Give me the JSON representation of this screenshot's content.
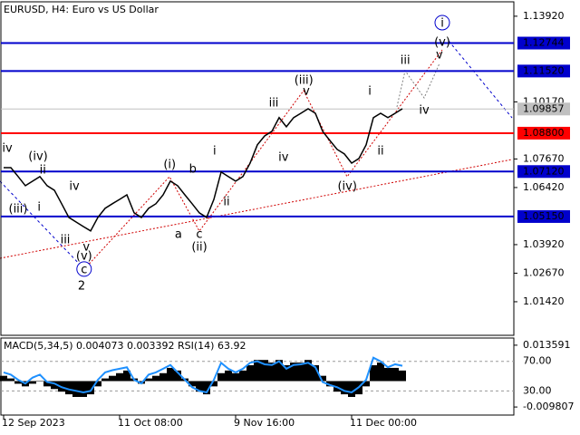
{
  "chart_data": [
    {
      "type": "line",
      "title": "EURUSD, H4:  Euro vs US Dollar",
      "categories": [
        "12 Sep 2023",
        null,
        null,
        null,
        null,
        null,
        null,
        null,
        null,
        null,
        null,
        null,
        null,
        null,
        null,
        null,
        "11 Oct 08:00",
        null,
        null,
        null,
        null,
        null,
        null,
        null,
        null,
        null,
        null,
        null,
        null,
        null,
        null,
        null,
        "9 Nov 16:00",
        null,
        null,
        null,
        null,
        null,
        null,
        null,
        null,
        null,
        null,
        null,
        null,
        null,
        null,
        null,
        "11 Dec 00:00",
        null,
        null,
        null,
        null,
        null,
        null,
        null
      ],
      "series": [
        {
          "name": "EURUSD",
          "color": "#000000",
          "values": [
            1.0729,
            1.0729,
            1.069,
            1.065,
            1.067,
            1.069,
            1.065,
            1.063,
            1.0571,
            1.0511,
            1.0491,
            1.0471,
            1.0452,
            1.0511,
            1.0551,
            1.0571,
            1.059,
            1.061,
            1.0531,
            1.0511,
            1.0551,
            1.0571,
            1.061,
            1.067,
            1.065,
            1.061,
            1.0571,
            1.0531,
            1.0511,
            1.059,
            1.071,
            1.069,
            1.067,
            1.069,
            1.0749,
            1.0829,
            1.0868,
            1.0888,
            1.0948,
            1.0908,
            1.0948,
            1.0967,
            1.0987,
            1.0967,
            1.0888,
            1.0848,
            1.0809,
            1.0789,
            1.0749,
            1.0769,
            1.0829,
            1.0948,
            1.0967,
            1.0948,
            1.0967,
            1.0987
          ]
        }
      ],
      "ylim": [
        0.9995,
        1.1463
      ],
      "yticks": [
        {
          "value": 1.1392,
          "label": "1.13920"
        },
        {
          "value": 1.1017,
          "label": "1.10170"
        },
        {
          "value": 1.0767,
          "label": "1.07670"
        },
        {
          "value": 1.0642,
          "label": "1.06420"
        },
        {
          "value": 1.0392,
          "label": "1.03920"
        },
        {
          "value": 1.0267,
          "label": "1.02670"
        },
        {
          "value": 1.0142,
          "label": "1.01420"
        }
      ],
      "levels": [
        {
          "value": 1.12744,
          "color": "#0000cc"
        },
        {
          "value": 1.1152,
          "label": "1.11520",
          "color": "#0000cc"
        },
        {
          "value": 1.09857,
          "color": "#c0c0c0"
        },
        {
          "value": 1.088,
          "label": "1.08800",
          "color": "#ff0000"
        },
        {
          "value": 1.0712,
          "label": "1.07120",
          "color": "#0000cc"
        },
        {
          "value": 1.0515,
          "label": "1.05150",
          "color": "#0000cc"
        }
      ],
      "annotations": [
        {
          "text": "iv",
          "x": 0.5,
          "y": 1.0817,
          "color": "#808080"
        },
        {
          "text": "(iv)",
          "x": 4.75,
          "y": 1.0781,
          "color": "#d00000"
        },
        {
          "text": "ii",
          "x": 5.4,
          "y": 1.0721,
          "color": "#808080"
        },
        {
          "text": "(iii)",
          "x": 2,
          "y": 1.0551,
          "color": "#d00000"
        },
        {
          "text": "i",
          "x": 4.9,
          "y": 1.0559,
          "color": "#808080"
        },
        {
          "text": "iv",
          "x": 9.75,
          "y": 1.065,
          "color": "#808080"
        },
        {
          "text": "iii",
          "x": 8.5,
          "y": 1.0416,
          "color": "#808080"
        },
        {
          "text": "v",
          "x": 11.4,
          "y": 1.0384,
          "color": "#808080"
        },
        {
          "text": "(v)",
          "x": 11.1,
          "y": 1.0344,
          "color": "#d00000"
        },
        {
          "text": "c",
          "x": 11.1,
          "y": 1.0285,
          "color": "#0000cc",
          "circle": true
        },
        {
          "text": "2",
          "x": 10.75,
          "y": 1.0213,
          "color": "#d00000"
        },
        {
          "text": "(i)",
          "x": 22.9,
          "y": 1.0745,
          "color": "#d00000"
        },
        {
          "text": "a",
          "x": 24.1,
          "y": 1.044,
          "color": "#808080"
        },
        {
          "text": "b",
          "x": 26.1,
          "y": 1.0725,
          "color": "#808080"
        },
        {
          "text": "c",
          "x": 27,
          "y": 1.044,
          "color": "#808080"
        },
        {
          "text": "(ii)",
          "x": 27,
          "y": 1.0384,
          "color": "#d00000"
        },
        {
          "text": "i",
          "x": 29.1,
          "y": 1.0805,
          "color": "#808080"
        },
        {
          "text": "ii",
          "x": 30.75,
          "y": 1.0582,
          "color": "#808080"
        },
        {
          "text": "iii",
          "x": 37.25,
          "y": 1.1015,
          "color": "#808080"
        },
        {
          "text": "iv",
          "x": 38.6,
          "y": 1.0777,
          "color": "#808080"
        },
        {
          "text": "v",
          "x": 41.75,
          "y": 1.1067,
          "color": "#808080"
        },
        {
          "text": "(iii)",
          "x": 41.4,
          "y": 1.1114,
          "color": "#d00000"
        },
        {
          "text": "(iv)",
          "x": 47.4,
          "y": 1.065,
          "color": "#d00000"
        },
        {
          "text": "i",
          "x": 50.5,
          "y": 1.1067,
          "color": "#808080"
        },
        {
          "text": "ii",
          "x": 52,
          "y": 1.0805,
          "color": "#808080"
        },
        {
          "text": "iii",
          "x": 55.4,
          "y": 1.1202,
          "color": "#808080"
        },
        {
          "text": "iv",
          "x": 58,
          "y": 1.0983,
          "color": "#808080"
        },
        {
          "text": "v",
          "x": 60.1,
          "y": 1.1225,
          "color": "#808080"
        },
        {
          "text": "(v)",
          "x": 60.5,
          "y": 1.1281,
          "color": "#d00000"
        },
        {
          "text": "i",
          "x": 60.5,
          "y": 1.1364,
          "color": "#0000cc",
          "circle": true
        }
      ]
    },
    {
      "type": "bar",
      "title": "MACD(5,34,5) 0.004073 0.003392 RSI(14) 63.92",
      "series": [
        {
          "name": "MACD",
          "color": "#000000",
          "values": [
            0.002,
            0.001,
            -0.001,
            -0.002,
            -0.001,
            0.0,
            -0.002,
            -0.003,
            -0.004,
            -0.005,
            -0.006,
            -0.006,
            -0.005,
            -0.002,
            0.001,
            0.002,
            0.003,
            0.004,
            0.001,
            -0.001,
            0.001,
            0.002,
            0.003,
            0.005,
            0.004,
            0.001,
            -0.002,
            -0.004,
            -0.005,
            -0.002,
            0.003,
            0.004,
            0.003,
            0.004,
            0.006,
            0.008,
            0.008,
            0.007,
            0.008,
            0.006,
            0.007,
            0.007,
            0.008,
            0.006,
            0.002,
            -0.002,
            -0.004,
            -0.005,
            -0.006,
            -0.005,
            -0.002,
            0.006,
            0.007,
            0.005,
            0.005,
            0.004
          ]
        },
        {
          "name": "RSI(14)",
          "color": "#1e90ff",
          "axis": "y2",
          "values": [
            55,
            52,
            45,
            40,
            48,
            52,
            42,
            40,
            35,
            32,
            30,
            28,
            30,
            45,
            55,
            58,
            60,
            62,
            45,
            40,
            52,
            55,
            60,
            65,
            55,
            45,
            35,
            30,
            28,
            45,
            68,
            60,
            55,
            60,
            68,
            70,
            66,
            65,
            70,
            60,
            65,
            66,
            68,
            62,
            42,
            38,
            35,
            30,
            28,
            35,
            45,
            75,
            70,
            62,
            66,
            64
          ]
        }
      ],
      "ylim": [
        -0.01286,
        0.0163
      ],
      "yticks": [
        0.013591,
        -0.009807
      ],
      "y2lim": [
        -2.7,
        101.5
      ],
      "y2ticks": [
        {
          "value": 70,
          "label": "70.00"
        },
        {
          "value": 30,
          "label": "30.00"
        }
      ]
    }
  ]
}
